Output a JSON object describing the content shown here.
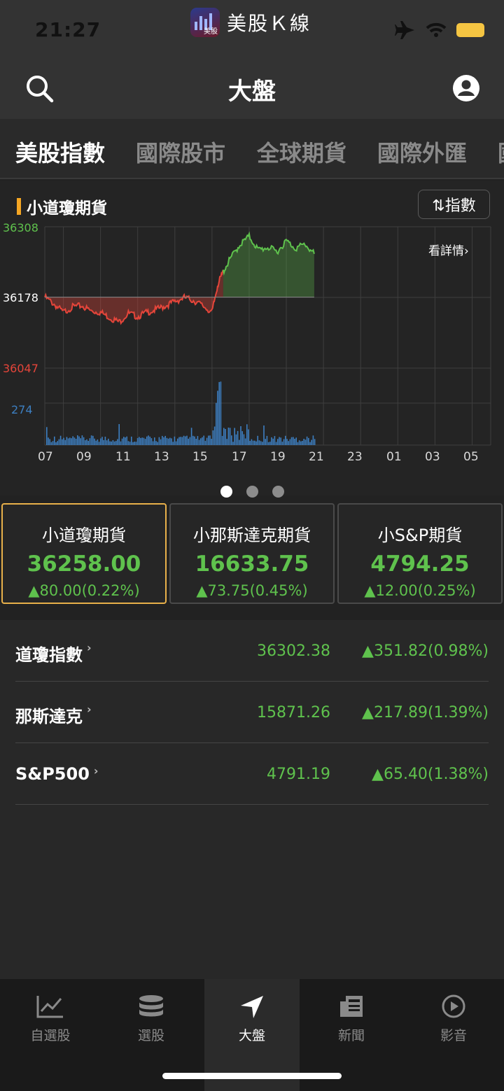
{
  "status_bar": {
    "time": "21:27",
    "app_name": "美股Ｋ線",
    "app_logo_label": "美股"
  },
  "header": {
    "title": "大盤"
  },
  "tabs": [
    {
      "label": "美股指數",
      "active": true
    },
    {
      "label": "國際股市",
      "active": false
    },
    {
      "label": "全球期貨",
      "active": false
    },
    {
      "label": "國際外匯",
      "active": false
    },
    {
      "label": "國",
      "active": false
    }
  ],
  "chart_panel": {
    "title": "小道瓊期貨",
    "toggle_label": "⇅指數",
    "detail_link": "看詳情",
    "y_labels": {
      "high": "36308",
      "ref": "36178",
      "low": "36047",
      "volume": "274"
    },
    "x_labels": [
      "07",
      "09",
      "11",
      "13",
      "15",
      "17",
      "19",
      "21",
      "23",
      "01",
      "03",
      "05"
    ],
    "colors": {
      "up": "#5fc24d",
      "down": "#e5453a",
      "volume": "#3d7fc1",
      "ref": "#ffffff"
    },
    "pages": 3,
    "active_page": 0
  },
  "chart_data": {
    "type": "area",
    "title": "小道瓊期貨",
    "x_ticks": [
      "07",
      "09",
      "11",
      "13",
      "15",
      "17",
      "19",
      "21",
      "23",
      "01",
      "03",
      "05"
    ],
    "ylim": [
      36047,
      36308
    ],
    "reference": 36178,
    "volume_max": 274,
    "series": [
      {
        "x": [
          7.0,
          7.5,
          8.0,
          8.5,
          9.0,
          9.5,
          10.0,
          10.5,
          11.0,
          11.5,
          12.0,
          12.5,
          13.0,
          13.5,
          14.0,
          14.5,
          15.0,
          15.5,
          16.0,
          16.3,
          16.6,
          17.0,
          17.5,
          18.0,
          18.5,
          19.0,
          19.5,
          20.0,
          20.5,
          21.0,
          21.5
        ],
        "values": [
          36178,
          36165,
          36150,
          36160,
          36162,
          36152,
          36150,
          36140,
          36132,
          36148,
          36142,
          36150,
          36155,
          36162,
          36170,
          36177,
          36172,
          36162,
          36150,
          36200,
          36225,
          36250,
          36275,
          36290,
          36265,
          36270,
          36262,
          36282,
          36268,
          36276,
          36258
        ]
      }
    ]
  },
  "cards": [
    {
      "name": "小道瓊期貨",
      "price": "36258.00",
      "change": "▲80.00(0.22%)",
      "selected": true
    },
    {
      "name": "小那斯達克期貨",
      "price": "16633.75",
      "change": "▲73.75(0.45%)",
      "selected": false
    },
    {
      "name": "小S&P期貨",
      "price": "4794.25",
      "change": "▲12.00(0.25%)",
      "selected": false
    }
  ],
  "index_list": [
    {
      "name": "道瓊指數",
      "value": "36302.38",
      "change": "▲351.82(0.98%)"
    },
    {
      "name": "那斯達克",
      "value": "15871.26",
      "change": "▲217.89(1.39%)"
    },
    {
      "name": "S&P500",
      "value": "4791.19",
      "change": "▲65.40(1.38%)"
    }
  ],
  "bottom_nav": [
    {
      "label": "自選股",
      "icon": "chart-line-icon",
      "active": false
    },
    {
      "label": "選股",
      "icon": "database-icon",
      "active": false
    },
    {
      "label": "大盤",
      "icon": "navigation-arrow-icon",
      "active": true
    },
    {
      "label": "新聞",
      "icon": "newspaper-icon",
      "active": false
    },
    {
      "label": "影音",
      "icon": "play-circle-icon",
      "active": false
    }
  ]
}
